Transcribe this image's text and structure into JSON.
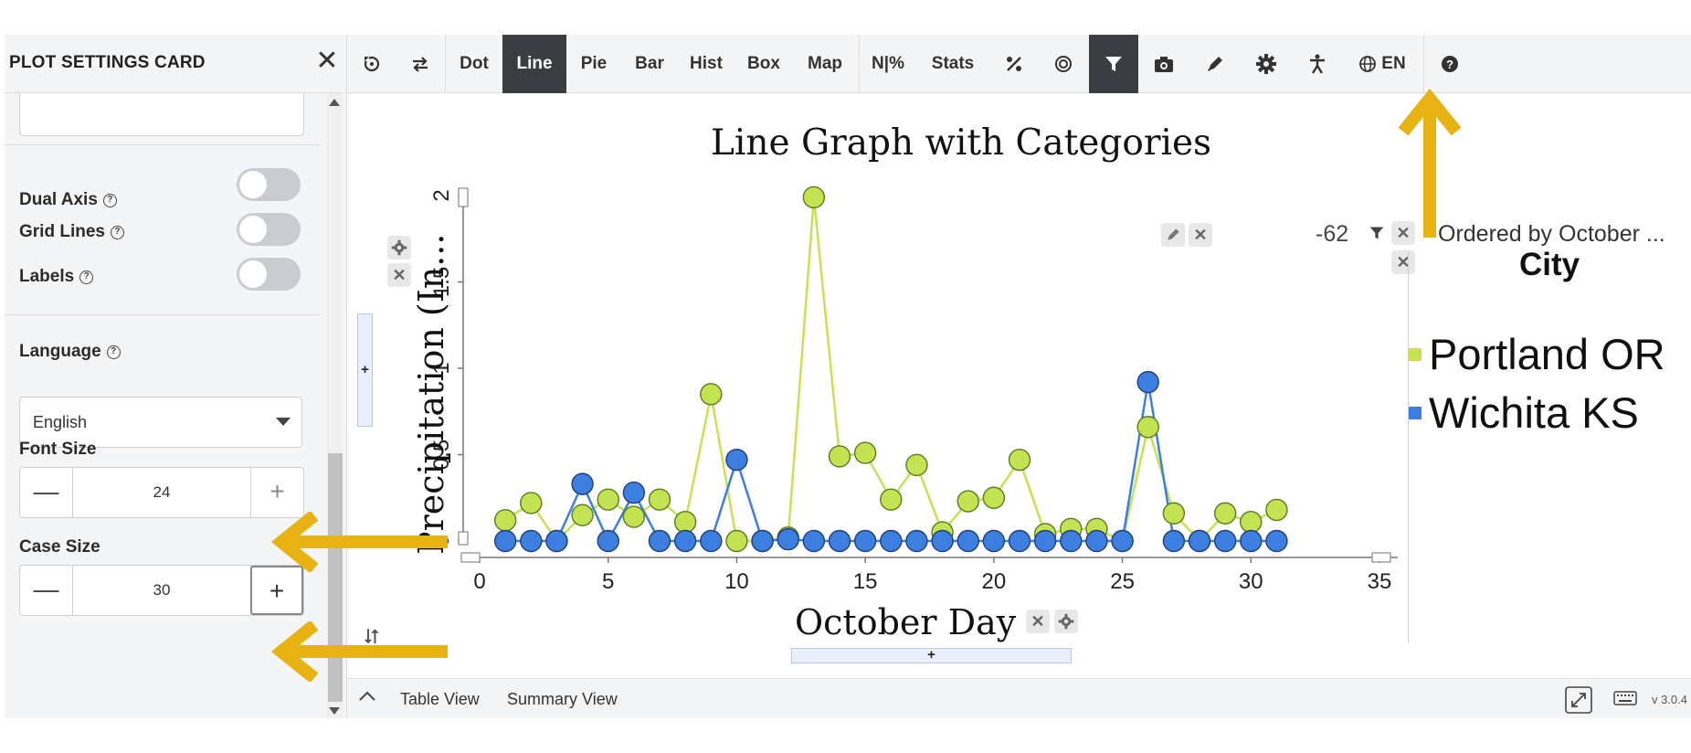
{
  "panel": {
    "title": "PLOT SETTINGS CARD",
    "close_glyph": "✕",
    "dual_axis_label": "Dual Axis",
    "grid_lines_label": "Grid Lines",
    "labels_label": "Labels",
    "help_glyph": "?",
    "language_label": "Language",
    "language_value": "English",
    "font_size_label": "Font Size",
    "font_size_value": "24",
    "case_size_label": "Case Size",
    "case_size_value": "30",
    "minus_glyph": "—",
    "plus_glyph": "+"
  },
  "toolbar": {
    "dot": "Dot",
    "line": "Line",
    "pie": "Pie",
    "bar": "Bar",
    "hist": "Hist",
    "box": "Box",
    "map": "Map",
    "npct": "N|%",
    "stats": "Stats",
    "lang": "EN"
  },
  "plot": {
    "filter_value": "-62",
    "order_text": "Ordered by October ...",
    "add_glyph": "+",
    "swap_glyph": "⮃"
  },
  "bottom": {
    "table_view": "Table View",
    "summary_view": "Summary View",
    "version": "v 3.0.4"
  },
  "colors": {
    "series_green": "#c3e352",
    "series_blue": "#3d7fe0",
    "arrow": "#e9b213",
    "active_tab": "#3a3d42"
  },
  "chart_data": {
    "type": "line",
    "title": "Line Graph with Categories",
    "xlabel": "October Day",
    "ylabel": "Precipitation (In...",
    "xlim": [
      0,
      35
    ],
    "ylim": [
      0,
      2
    ],
    "x_ticks": [
      "0",
      "5",
      "10",
      "15",
      "20",
      "25",
      "30",
      "35"
    ],
    "y_ticks": [
      "0",
      "0.5",
      "1",
      "1.5",
      "2"
    ],
    "legend_title": "City",
    "legend_position": "right",
    "x": [
      1,
      2,
      3,
      4,
      5,
      6,
      7,
      8,
      9,
      10,
      11,
      12,
      13,
      14,
      15,
      16,
      17,
      18,
      19,
      20,
      21,
      22,
      23,
      24,
      25,
      26,
      27,
      28,
      29,
      30,
      31
    ],
    "series": [
      {
        "name": "Portland OR",
        "color": "#c3e352",
        "values": [
          0.12,
          0.22,
          0.0,
          0.15,
          0.24,
          0.14,
          0.24,
          0.11,
          0.85,
          0.0,
          0.0,
          0.02,
          1.99,
          0.49,
          0.51,
          0.24,
          0.44,
          0.05,
          0.23,
          0.25,
          0.47,
          0.04,
          0.07,
          0.07,
          0.0,
          0.66,
          0.16,
          0.0,
          0.16,
          0.11,
          0.18
        ]
      },
      {
        "name": "Wichita KS",
        "color": "#3d7fe0",
        "values": [
          0.0,
          0.0,
          0.0,
          0.33,
          0.0,
          0.28,
          0.0,
          0.0,
          0.0,
          0.47,
          0.0,
          0.01,
          0.0,
          0.0,
          0.0,
          0.0,
          0.0,
          0.0,
          0.0,
          0.0,
          0.0,
          0.0,
          0.0,
          0.0,
          0.0,
          0.92,
          0.0,
          0.0,
          0.0,
          0.0,
          0.0
        ]
      }
    ]
  }
}
